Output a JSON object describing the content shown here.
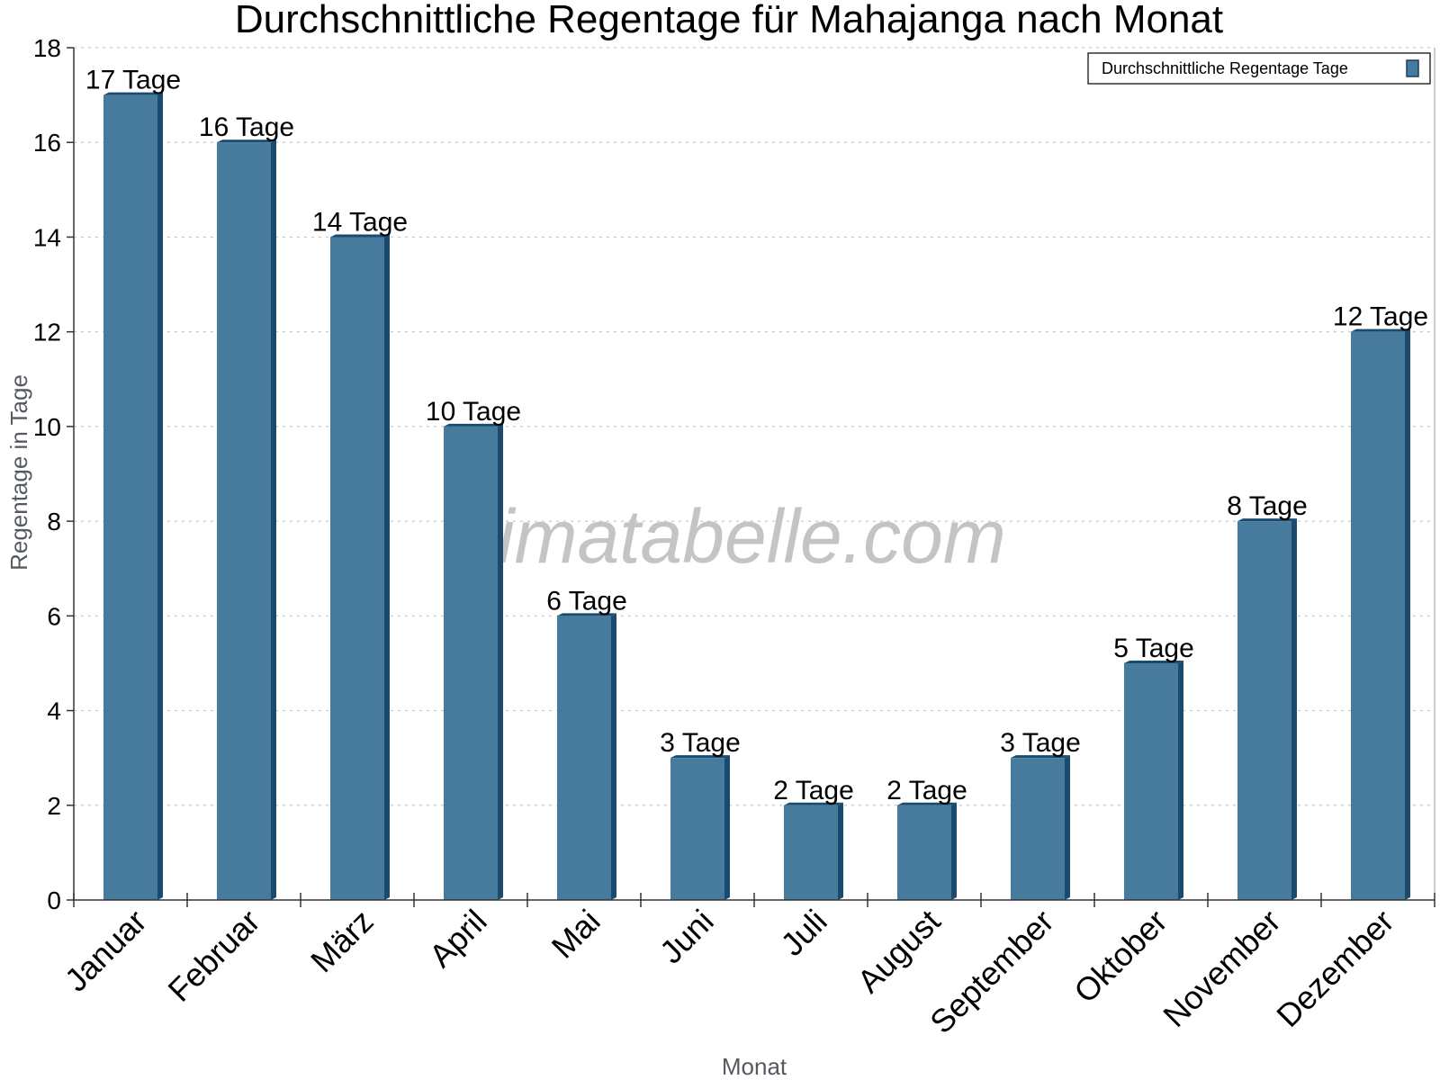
{
  "chart_data": {
    "type": "bar",
    "title": "Durchschnittliche Regentage für Mahajanga nach Monat",
    "xlabel": "Monat",
    "ylabel": "Regentage in Tage",
    "ylim": [
      0,
      18
    ],
    "yticks": [
      0,
      2,
      4,
      6,
      8,
      10,
      12,
      14,
      16,
      18
    ],
    "grid": true,
    "legend_position": "top-right",
    "categories": [
      "Januar",
      "Februar",
      "März",
      "April",
      "Mai",
      "Juni",
      "Juli",
      "August",
      "September",
      "Oktober",
      "November",
      "Dezember"
    ],
    "series": [
      {
        "name": "Durchschnittliche Regentage Tage",
        "color": "#467b9e",
        "values": [
          17,
          16,
          14,
          10,
          6,
          3,
          2,
          2,
          3,
          5,
          8,
          12
        ],
        "labels": [
          "17 Tage",
          "16 Tage",
          "14 Tage",
          "10 Tage",
          "6 Tage",
          "3 Tage",
          "2 Tage",
          "2 Tage",
          "3 Tage",
          "5 Tage",
          "8 Tage",
          "12 Tage"
        ]
      }
    ],
    "watermark": "klimatabelle.com"
  }
}
